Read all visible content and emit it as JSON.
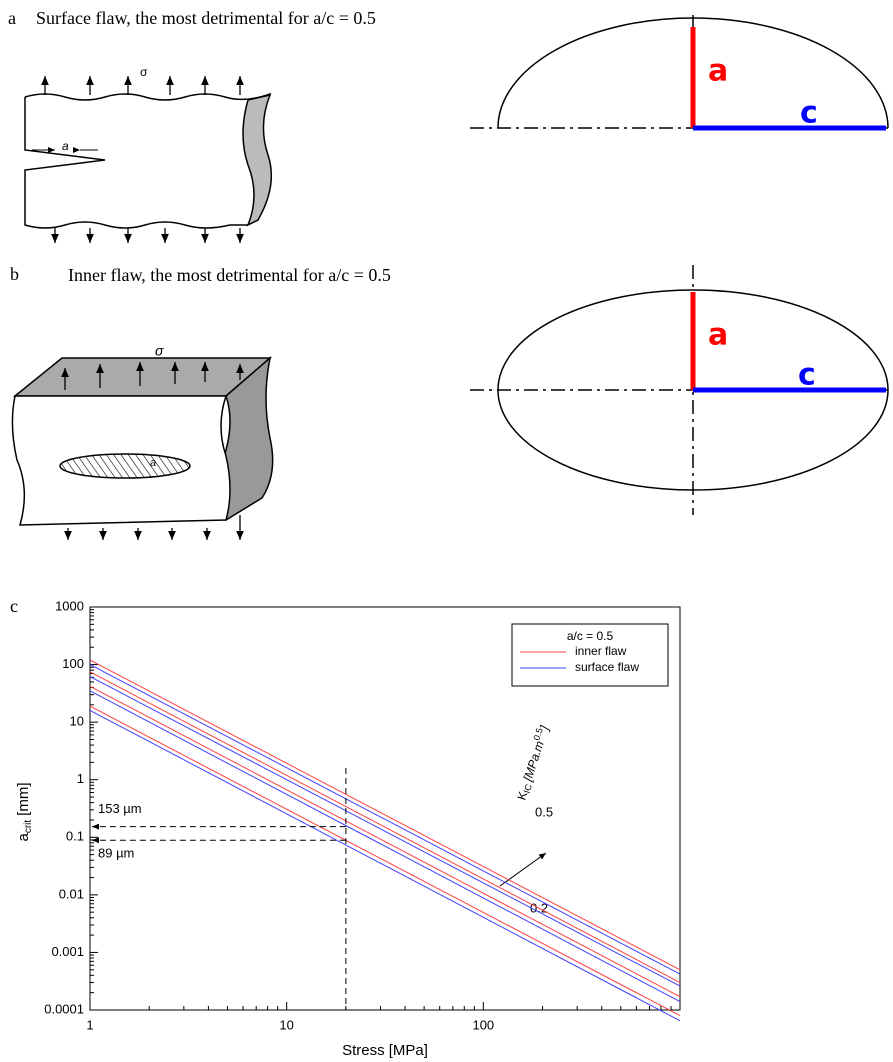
{
  "panels": {
    "a": {
      "label": "a",
      "caption": "Surface flaw, the most detrimental for a/c = 0.5",
      "stress": "σ",
      "crack": "a",
      "depth": "a",
      "half_length": "c"
    },
    "b": {
      "label": "b",
      "caption": "Inner flaw, the most detrimental for a/c = 0.5",
      "stress": "σ",
      "crack": "a",
      "depth": "a",
      "half_length": "c"
    }
  },
  "chart_data": {
    "type": "line",
    "panel_label": "c",
    "xlabel": "Stress [MPa]",
    "ylabel": {
      "symbol": "a",
      "sub": "crit",
      "unit": "[mm]"
    },
    "xscale": "log",
    "yscale": "log",
    "xlim": [
      1,
      1000
    ],
    "ylim": [
      0.0001,
      1000
    ],
    "xticks": [
      1,
      10,
      100
    ],
    "yticks": [
      0.0001,
      0.001,
      0.01,
      0.1,
      1,
      10,
      100,
      1000
    ],
    "x": [
      1,
      1000
    ],
    "legend_title": "a/c = 0.5",
    "series": [
      {
        "name": "inner flaw",
        "color": "#ff4040",
        "values": [
          [
            120,
            0.0005
          ],
          [
            75,
            0.0003
          ],
          [
            42,
            0.00017
          ],
          [
            19,
            8e-05
          ]
        ]
      },
      {
        "name": "surface flaw",
        "color": "#4040ff",
        "values": [
          [
            100,
            0.00042
          ],
          [
            62,
            0.00026
          ],
          [
            35,
            0.00014
          ],
          [
            16,
            6.5e-05
          ]
        ]
      }
    ],
    "stress_marker": 20,
    "crit_marks": [
      {
        "value": 0.153,
        "label": "153 µm"
      },
      {
        "value": 0.089,
        "label": "89 µm"
      }
    ],
    "kic_label": {
      "symbol": "K",
      "sub": "IC",
      "unit": "[MPa.m",
      "sup": "0.5",
      "close": "]"
    },
    "kic_high": "0.5",
    "kic_low": "0.2"
  }
}
